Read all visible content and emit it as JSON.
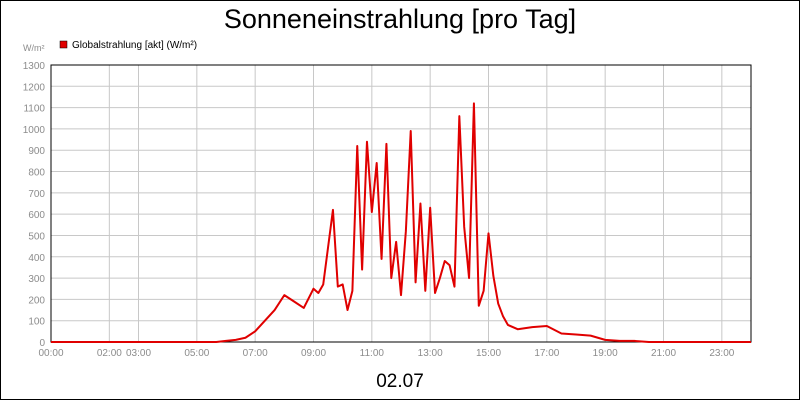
{
  "chart_data": {
    "type": "line",
    "title": "Sonneneinstrahlung [pro Tag]",
    "ylabel": "W/m²",
    "xlabel": "02.07",
    "ylim": [
      0,
      1300
    ],
    "y_ticks": [
      "0",
      "100",
      "200",
      "300",
      "400",
      "500",
      "600",
      "700",
      "800",
      "900",
      "1000",
      "1100",
      "1200",
      "1300"
    ],
    "x_ticks": [
      "00:00",
      "02:00",
      "03:00",
      "05:00",
      "07:00",
      "09:00",
      "11:00",
      "13:00",
      "15:00",
      "17:00",
      "19:00",
      "21:00",
      "23:00"
    ],
    "grid": true,
    "legend_position": "top-left",
    "colors": {
      "series": "#e00000",
      "grid": "#c8c8c8",
      "axis": "#000000",
      "tick_text": "#8c8c8c"
    },
    "series": [
      {
        "name": "Globalstrahlung [akt] (W/m²)",
        "x": [
          "00:00",
          "05:40",
          "06:00",
          "06:20",
          "06:40",
          "07:00",
          "07:20",
          "07:40",
          "08:00",
          "08:20",
          "08:40",
          "09:00",
          "09:10",
          "09:20",
          "09:40",
          "09:50",
          "10:00",
          "10:10",
          "10:20",
          "10:30",
          "10:40",
          "10:50",
          "11:00",
          "11:10",
          "11:20",
          "11:30",
          "11:40",
          "11:50",
          "12:00",
          "12:10",
          "12:20",
          "12:30",
          "12:40",
          "12:50",
          "13:00",
          "13:10",
          "13:20",
          "13:30",
          "13:40",
          "13:50",
          "14:00",
          "14:10",
          "14:20",
          "14:30",
          "14:40",
          "14:50",
          "15:00",
          "15:10",
          "15:20",
          "15:30",
          "15:40",
          "16:00",
          "16:30",
          "17:00",
          "17:30",
          "18:00",
          "18:30",
          "19:00",
          "19:30",
          "20:00",
          "20:30",
          "21:00",
          "22:00",
          "24:00"
        ],
        "values": [
          0,
          0,
          5,
          10,
          20,
          50,
          100,
          150,
          220,
          190,
          160,
          250,
          230,
          270,
          620,
          260,
          270,
          150,
          240,
          920,
          340,
          940,
          610,
          840,
          390,
          930,
          300,
          470,
          220,
          520,
          990,
          280,
          650,
          240,
          630,
          230,
          300,
          380,
          360,
          260,
          1060,
          540,
          300,
          1120,
          170,
          240,
          510,
          310,
          180,
          120,
          80,
          60,
          70,
          75,
          40,
          35,
          30,
          10,
          5,
          5,
          0,
          0,
          0,
          0
        ]
      }
    ]
  }
}
